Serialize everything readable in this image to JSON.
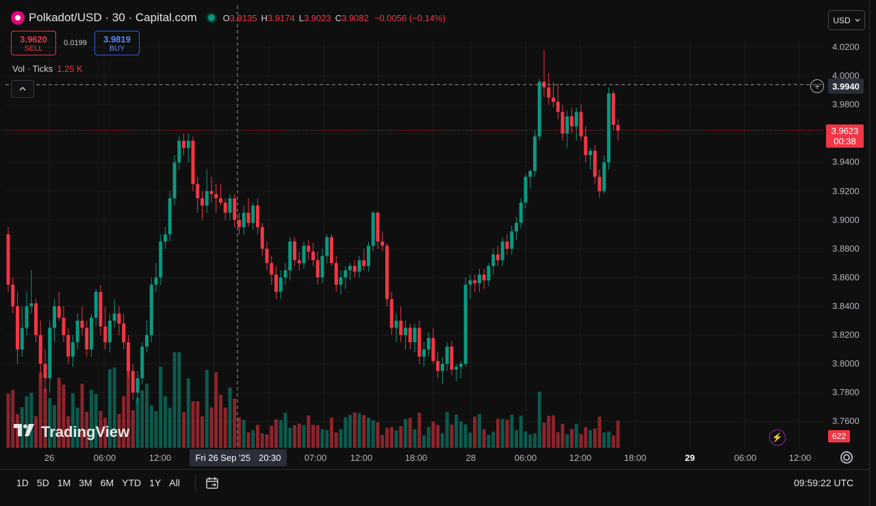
{
  "header": {
    "title": "Polkadot/USD · 30 · Capital.com",
    "ohlc": [
      {
        "k": "O",
        "v": "3.9135"
      },
      {
        "k": "H",
        "v": "3.9174"
      },
      {
        "k": "L",
        "v": "3.9023"
      },
      {
        "k": "C",
        "v": "3.9082"
      }
    ],
    "change": "−0.0056 (−0.14%)"
  },
  "trade": {
    "sell_price": "3.9620",
    "sell_label": "SELL",
    "spread": "0.0199",
    "buy_price": "3.9819",
    "buy_label": "BUY"
  },
  "volume": {
    "label": "Vol · Ticks",
    "value": "1.25 K"
  },
  "currency": "USD",
  "price_axis": [
    "4.0200",
    "4.0000",
    "3.9800",
    "3.9600",
    "3.9400",
    "3.9200",
    "3.9000",
    "3.8800",
    "3.8600",
    "3.8400",
    "3.8200",
    "3.8000",
    "3.7800",
    "3.7600"
  ],
  "crosshair": {
    "price": "3.9940",
    "date": "Fri 26 Sep '25",
    "time": "20:30"
  },
  "last_price": {
    "price": "3.9623",
    "countdown": "00:38"
  },
  "volume_tag": "622",
  "time_axis": [
    {
      "label": "26",
      "bold": false
    },
    {
      "label": "06:00",
      "bold": false
    },
    {
      "label": "12:00",
      "bold": false
    },
    {
      "label": "07:00",
      "bold": false
    },
    {
      "label": "12:00",
      "bold": false
    },
    {
      "label": "18:00",
      "bold": false
    },
    {
      "label": "28",
      "bold": false
    },
    {
      "label": "06:00",
      "bold": false
    },
    {
      "label": "12:00",
      "bold": false
    },
    {
      "label": "18:00",
      "bold": false
    },
    {
      "label": "29",
      "bold": true
    },
    {
      "label": "06:00",
      "bold": false
    },
    {
      "label": "12:00",
      "bold": false
    }
  ],
  "brand": "TradingView",
  "ranges": [
    "1D",
    "5D",
    "1M",
    "3M",
    "6M",
    "YTD",
    "1Y",
    "All"
  ],
  "clock": "09:59:22 UTC",
  "colors": {
    "up": "#089981",
    "down": "#f23645",
    "bg": "#0f0f0f"
  },
  "chart_data": {
    "type": "candlestick",
    "symbol": "Polkadot/USD",
    "interval": "30",
    "ylim": [
      3.75,
      4.03
    ],
    "candles": [
      [
        3.89,
        3.895,
        3.85,
        3.855
      ],
      [
        3.855,
        3.86,
        3.835,
        3.84
      ],
      [
        3.84,
        3.85,
        3.8,
        3.81
      ],
      [
        3.81,
        3.84,
        3.805,
        3.825
      ],
      [
        3.825,
        3.85,
        3.82,
        3.84
      ],
      [
        3.84,
        3.865,
        3.835,
        3.842
      ],
      [
        3.842,
        3.845,
        3.815,
        3.82
      ],
      [
        3.82,
        3.83,
        3.79,
        3.8
      ],
      [
        3.8,
        3.81,
        3.78,
        3.79
      ],
      [
        3.79,
        3.83,
        3.78,
        3.825
      ],
      [
        3.825,
        3.845,
        3.815,
        3.84
      ],
      [
        3.84,
        3.85,
        3.83,
        3.832
      ],
      [
        3.832,
        3.84,
        3.815,
        3.82
      ],
      [
        3.82,
        3.825,
        3.8,
        3.805
      ],
      [
        3.805,
        3.82,
        3.798,
        3.815
      ],
      [
        3.815,
        3.835,
        3.81,
        3.83
      ],
      [
        3.83,
        3.84,
        3.82,
        3.825
      ],
      [
        3.825,
        3.83,
        3.805,
        3.81
      ],
      [
        3.81,
        3.835,
        3.805,
        3.832
      ],
      [
        3.832,
        3.852,
        3.826,
        3.85
      ],
      [
        3.85,
        3.855,
        3.82,
        3.826
      ],
      [
        3.826,
        3.84,
        3.81,
        3.815
      ],
      [
        3.815,
        3.835,
        3.808,
        3.83
      ],
      [
        3.83,
        3.845,
        3.825,
        3.835
      ],
      [
        3.835,
        3.84,
        3.82,
        3.828
      ],
      [
        3.828,
        3.835,
        3.81,
        3.815
      ],
      [
        3.815,
        3.82,
        3.79,
        3.795
      ],
      [
        3.795,
        3.8,
        3.775,
        3.78
      ],
      [
        3.78,
        3.795,
        3.772,
        3.79
      ],
      [
        3.79,
        3.815,
        3.786,
        3.812
      ],
      [
        3.812,
        3.83,
        3.808,
        3.82
      ],
      [
        3.82,
        3.86,
        3.815,
        3.855
      ],
      [
        3.855,
        3.87,
        3.85,
        3.86
      ],
      [
        3.86,
        3.89,
        3.855,
        3.885
      ],
      [
        3.885,
        3.895,
        3.88,
        3.89
      ],
      [
        3.89,
        3.92,
        3.885,
        3.915
      ],
      [
        3.915,
        3.945,
        3.91,
        3.94
      ],
      [
        3.94,
        3.958,
        3.935,
        3.955
      ],
      [
        3.955,
        3.96,
        3.945,
        3.95
      ],
      [
        3.95,
        3.96,
        3.94,
        3.955
      ],
      [
        3.955,
        3.958,
        3.92,
        3.925
      ],
      [
        3.925,
        3.93,
        3.905,
        3.915
      ],
      [
        3.915,
        3.92,
        3.9,
        3.91
      ],
      [
        3.91,
        3.935,
        3.905,
        3.92
      ],
      [
        3.92,
        3.93,
        3.912,
        3.918
      ],
      [
        3.918,
        3.925,
        3.905,
        3.915
      ],
      [
        3.915,
        3.925,
        3.91,
        3.912
      ],
      [
        3.912,
        3.915,
        3.9,
        3.905
      ],
      [
        3.905,
        3.918,
        3.9,
        3.915
      ],
      [
        3.915,
        3.918,
        3.895,
        3.9
      ],
      [
        3.9,
        3.905,
        3.89,
        3.895
      ],
      [
        3.895,
        3.91,
        3.89,
        3.905
      ],
      [
        3.905,
        3.915,
        3.895,
        3.898
      ],
      [
        3.898,
        3.912,
        3.893,
        3.91
      ],
      [
        3.91,
        3.915,
        3.89,
        3.895
      ],
      [
        3.895,
        3.898,
        3.875,
        3.88
      ],
      [
        3.88,
        3.885,
        3.865,
        3.87
      ],
      [
        3.87,
        3.875,
        3.855,
        3.862
      ],
      [
        3.862,
        3.868,
        3.845,
        3.85
      ],
      [
        3.85,
        3.865,
        3.845,
        3.86
      ],
      [
        3.86,
        3.87,
        3.855,
        3.865
      ],
      [
        3.865,
        3.888,
        3.858,
        3.885
      ],
      [
        3.885,
        3.888,
        3.868,
        3.872
      ],
      [
        3.872,
        3.878,
        3.865,
        3.87
      ],
      [
        3.87,
        3.885,
        3.866,
        3.882
      ],
      [
        3.882,
        3.886,
        3.872,
        3.878
      ],
      [
        3.878,
        3.884,
        3.868,
        3.872
      ],
      [
        3.872,
        3.878,
        3.855,
        3.86
      ],
      [
        3.86,
        3.88,
        3.856,
        3.875
      ],
      [
        3.875,
        3.89,
        3.87,
        3.888
      ],
      [
        3.888,
        3.89,
        3.868,
        3.87
      ],
      [
        3.87,
        3.875,
        3.85,
        3.855
      ],
      [
        3.855,
        3.865,
        3.848,
        3.86
      ],
      [
        3.86,
        3.868,
        3.852,
        3.865
      ],
      [
        3.865,
        3.87,
        3.858,
        3.868
      ],
      [
        3.868,
        3.872,
        3.86,
        3.864
      ],
      [
        3.864,
        3.875,
        3.86,
        3.872
      ],
      [
        3.872,
        3.88,
        3.865,
        3.868
      ],
      [
        3.868,
        3.885,
        3.864,
        3.882
      ],
      [
        3.882,
        3.906,
        3.878,
        3.905
      ],
      [
        3.905,
        3.906,
        3.88,
        3.885
      ],
      [
        3.885,
        3.892,
        3.878,
        3.882
      ],
      [
        3.882,
        3.884,
        3.84,
        3.845
      ],
      [
        3.845,
        3.85,
        3.82,
        3.825
      ],
      [
        3.825,
        3.835,
        3.815,
        3.83
      ],
      [
        3.83,
        3.84,
        3.815,
        3.82
      ],
      [
        3.82,
        3.83,
        3.81,
        3.825
      ],
      [
        3.825,
        3.828,
        3.81,
        3.815
      ],
      [
        3.815,
        3.828,
        3.808,
        3.825
      ],
      [
        3.825,
        3.83,
        3.8,
        3.805
      ],
      [
        3.805,
        3.815,
        3.798,
        3.81
      ],
      [
        3.81,
        3.822,
        3.805,
        3.818
      ],
      [
        3.818,
        3.825,
        3.8,
        3.802
      ],
      [
        3.802,
        3.808,
        3.79,
        3.795
      ],
      [
        3.795,
        3.805,
        3.786,
        3.8
      ],
      [
        3.8,
        3.815,
        3.795,
        3.812
      ],
      [
        3.812,
        3.816,
        3.792,
        3.796
      ],
      [
        3.796,
        3.8,
        3.788,
        3.798
      ],
      [
        3.798,
        3.802,
        3.79,
        3.8
      ],
      [
        3.8,
        3.86,
        3.798,
        3.855
      ],
      [
        3.855,
        3.862,
        3.845,
        3.858
      ],
      [
        3.858,
        3.862,
        3.85,
        3.856
      ],
      [
        3.856,
        3.866,
        3.85,
        3.862
      ],
      [
        3.862,
        3.866,
        3.852,
        3.858
      ],
      [
        3.858,
        3.87,
        3.854,
        3.868
      ],
      [
        3.868,
        3.88,
        3.862,
        3.876
      ],
      [
        3.876,
        3.882,
        3.868,
        3.872
      ],
      [
        3.872,
        3.888,
        3.868,
        3.885
      ],
      [
        3.885,
        3.89,
        3.876,
        3.88
      ],
      [
        3.88,
        3.896,
        3.876,
        3.892
      ],
      [
        3.892,
        3.902,
        3.886,
        3.898
      ],
      [
        3.898,
        3.915,
        3.894,
        3.912
      ],
      [
        3.912,
        3.932,
        3.908,
        3.93
      ],
      [
        3.93,
        3.935,
        3.922,
        3.934
      ],
      [
        3.934,
        3.962,
        3.93,
        3.958
      ],
      [
        3.958,
        3.998,
        3.955,
        3.996
      ],
      [
        3.996,
        4.018,
        3.985,
        3.992
      ],
      [
        3.992,
        4.002,
        3.98,
        3.985
      ],
      [
        3.985,
        3.996,
        3.978,
        3.982
      ],
      [
        3.982,
        3.995,
        3.97,
        3.975
      ],
      [
        3.975,
        3.98,
        3.955,
        3.96
      ],
      [
        3.96,
        3.976,
        3.95,
        3.972
      ],
      [
        3.972,
        3.978,
        3.96,
        3.965
      ],
      [
        3.965,
        3.978,
        3.955,
        3.975
      ],
      [
        3.975,
        3.98,
        3.955,
        3.958
      ],
      [
        3.958,
        3.965,
        3.94,
        3.945
      ],
      [
        3.945,
        3.95,
        3.935,
        3.948
      ],
      [
        3.948,
        3.952,
        3.925,
        3.93
      ],
      [
        3.93,
        3.935,
        3.915,
        3.92
      ],
      [
        3.92,
        3.945,
        3.918,
        3.94
      ],
      [
        3.94,
        3.992,
        3.935,
        3.988
      ],
      [
        3.988,
        3.99,
        3.962,
        3.966
      ],
      [
        3.966,
        3.97,
        3.955,
        3.962
      ]
    ]
  }
}
